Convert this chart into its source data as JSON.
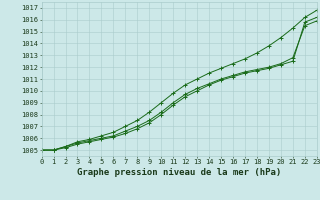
{
  "title": "Graphe pression niveau de la mer (hPa)",
  "bg_color": "#cce8e8",
  "grid_color": "#aacccc",
  "line_color": "#1a6b1a",
  "x_values": [
    0,
    1,
    2,
    3,
    4,
    5,
    6,
    7,
    8,
    9,
    10,
    11,
    12,
    13,
    14,
    15,
    16,
    17,
    18,
    19,
    20,
    21,
    22,
    23
  ],
  "series1": [
    1005.0,
    1005.0,
    1005.2,
    1005.5,
    1005.7,
    1005.9,
    1006.1,
    1006.4,
    1006.8,
    1007.3,
    1008.0,
    1008.8,
    1009.5,
    1010.0,
    1010.5,
    1010.9,
    1011.2,
    1011.5,
    1011.7,
    1011.9,
    1012.2,
    1012.5,
    1015.8,
    1016.2
  ],
  "series2": [
    1005.0,
    1005.0,
    1005.3,
    1005.6,
    1005.8,
    1006.0,
    1006.2,
    1006.6,
    1007.0,
    1007.5,
    1008.2,
    1009.0,
    1009.7,
    1010.2,
    1010.6,
    1011.0,
    1011.3,
    1011.6,
    1011.8,
    1012.0,
    1012.3,
    1012.8,
    1015.5,
    1015.9
  ],
  "series3": [
    1005.0,
    1005.0,
    1005.3,
    1005.7,
    1005.9,
    1006.2,
    1006.5,
    1007.0,
    1007.5,
    1008.2,
    1009.0,
    1009.8,
    1010.5,
    1011.0,
    1011.5,
    1011.9,
    1012.3,
    1012.7,
    1013.2,
    1013.8,
    1014.5,
    1015.3,
    1016.2,
    1016.8
  ],
  "ylim_min": 1004.5,
  "ylim_max": 1017.5,
  "ytick_min": 1005,
  "ytick_max": 1017,
  "xlim_min": 0,
  "xlim_max": 23,
  "title_fontsize": 6.5,
  "tick_fontsize": 5.0
}
